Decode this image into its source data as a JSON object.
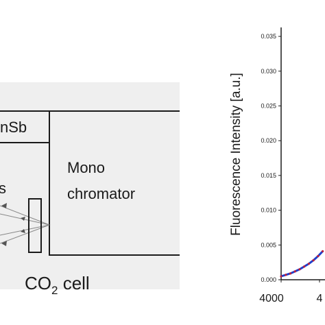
{
  "diagram": {
    "detector_label": "nSb",
    "monochromator_label_line1": "Mono",
    "monochromator_label_line2": "chromator",
    "partial_label": "s",
    "cell_label_main": "CO",
    "cell_label_sub": "2",
    "cell_label_rest": " cell",
    "colors": {
      "panel_background": "#efefef",
      "lines": "#1a1a1a",
      "beam": "#888888"
    }
  },
  "chart_data": {
    "type": "line",
    "title": "",
    "xlabel": "",
    "ylabel": "Fluorescence Intensity [a.u.]",
    "y_ticks": [
      "0.000",
      "0.005",
      "0.010",
      "0.015",
      "0.020",
      "0.025",
      "0.030",
      "0.035"
    ],
    "x_ticks": [
      "4000",
      "4"
    ],
    "ylim": [
      0,
      0.036
    ],
    "xlim": [
      4000,
      4200
    ],
    "grid": false,
    "series": [
      {
        "color": "#1f3fcc",
        "x": [
          4000,
          4010,
          4020,
          4030,
          4040,
          4050,
          4060,
          4070,
          4080,
          4090
        ],
        "y": [
          0.0005,
          0.0007,
          0.0009,
          0.0012,
          0.0015,
          0.0019,
          0.0023,
          0.0028,
          0.0034,
          0.0041
        ]
      }
    ]
  }
}
